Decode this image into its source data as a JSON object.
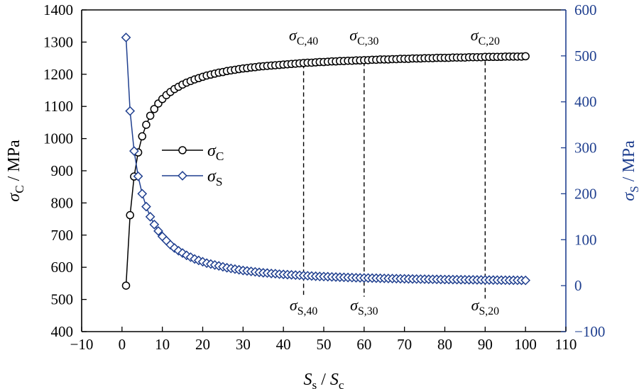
{
  "chart_data": {
    "type": "line",
    "xlabel": "S",
    "xlabel_sub": "s",
    "xlabel_sep": " / ",
    "xlabel_2": "S",
    "xlabel_2_sub": "c",
    "ylabel_left": "σ",
    "ylabel_left_sub": "C",
    "ylabel_left_unit": " / MPa",
    "ylabel_right": "σ",
    "ylabel_right_sub": "S",
    "ylabel_right_unit": " / MPa",
    "xlim": [
      -10,
      110
    ],
    "ylim_left": [
      400,
      1400
    ],
    "ylim_right": [
      -100,
      600
    ],
    "x_ticks": [
      -10,
      0,
      10,
      20,
      30,
      40,
      50,
      60,
      70,
      80,
      90,
      100,
      110
    ],
    "x_tick_labels": [
      "−10",
      "0",
      "10",
      "20",
      "30",
      "40",
      "50",
      "60",
      "70",
      "80",
      "90",
      "100",
      "110"
    ],
    "y_left_ticks": [
      400,
      500,
      600,
      700,
      800,
      900,
      1000,
      1100,
      1200,
      1300,
      1400
    ],
    "y_left_tick_labels": [
      "400",
      "500",
      "600",
      "700",
      "800",
      "900",
      "1000",
      "1100",
      "1200",
      "1300",
      "1400"
    ],
    "y_right_ticks": [
      -100,
      0,
      100,
      200,
      300,
      400,
      500,
      600
    ],
    "y_right_tick_labels": [
      "−100",
      "0",
      "100",
      "200",
      "300",
      "400",
      "500",
      "600"
    ],
    "grid": false,
    "legend_position": "center-left",
    "colors": {
      "sigma_c": "#000000",
      "sigma_s": "#1f3f8f",
      "axes": "#000000",
      "right_axis": "#1f3f8f"
    },
    "series": [
      {
        "name": "σ",
        "name_sub": "C",
        "axis": "left",
        "marker": "circle",
        "x": [
          1,
          2,
          3,
          4,
          5,
          6,
          7,
          8,
          9,
          10,
          11,
          12,
          13,
          14,
          15,
          16,
          17,
          18,
          19,
          20,
          21,
          22,
          23,
          24,
          25,
          26,
          27,
          28,
          29,
          30,
          31,
          32,
          33,
          34,
          35,
          36,
          37,
          38,
          39,
          40,
          41,
          42,
          43,
          44,
          45,
          46,
          47,
          48,
          49,
          50,
          51,
          52,
          53,
          54,
          55,
          56,
          57,
          58,
          59,
          60,
          61,
          62,
          63,
          64,
          65,
          66,
          67,
          68,
          69,
          70,
          71,
          72,
          73,
          74,
          75,
          76,
          77,
          78,
          79,
          80,
          81,
          82,
          83,
          84,
          85,
          86,
          87,
          88,
          89,
          90,
          91,
          92,
          93,
          94,
          95,
          96,
          97,
          98,
          99,
          100
        ],
        "y": [
          543,
          762,
          882,
          957,
          1007,
          1043,
          1071,
          1092,
          1109,
          1123,
          1135,
          1145,
          1154,
          1161,
          1168,
          1174,
          1179,
          1184,
          1188,
          1192,
          1196,
          1199,
          1202,
          1205,
          1207,
          1210,
          1212,
          1214,
          1216,
          1218,
          1219,
          1221,
          1222,
          1224,
          1225,
          1226,
          1227,
          1228,
          1229,
          1230,
          1231,
          1232,
          1233,
          1234,
          1235,
          1236,
          1236,
          1237,
          1238,
          1238,
          1239,
          1240,
          1240,
          1241,
          1241,
          1242,
          1242,
          1243,
          1243,
          1244,
          1244,
          1245,
          1245,
          1246,
          1246,
          1246,
          1247,
          1247,
          1248,
          1248,
          1248,
          1249,
          1249,
          1249,
          1250,
          1250,
          1250,
          1251,
          1251,
          1251,
          1251,
          1252,
          1252,
          1252,
          1252,
          1253,
          1253,
          1253,
          1253,
          1254,
          1254,
          1254,
          1254,
          1254,
          1255,
          1255,
          1255,
          1255,
          1255,
          1256
        ]
      },
      {
        "name": "σ",
        "name_sub": "S",
        "axis": "right",
        "marker": "diamond",
        "x": [
          1,
          2,
          3,
          4,
          5,
          6,
          7,
          8,
          9,
          10,
          11,
          12,
          13,
          14,
          15,
          16,
          17,
          18,
          19,
          20,
          21,
          22,
          23,
          24,
          25,
          26,
          27,
          28,
          29,
          30,
          31,
          32,
          33,
          34,
          35,
          36,
          37,
          38,
          39,
          40,
          41,
          42,
          43,
          44,
          45,
          46,
          47,
          48,
          49,
          50,
          51,
          52,
          53,
          54,
          55,
          56,
          57,
          58,
          59,
          60,
          61,
          62,
          63,
          64,
          65,
          66,
          67,
          68,
          69,
          70,
          71,
          72,
          73,
          74,
          75,
          76,
          77,
          78,
          79,
          80,
          81,
          82,
          83,
          84,
          85,
          86,
          87,
          88,
          89,
          90,
          91,
          92,
          93,
          94,
          95,
          96,
          97,
          98,
          99,
          100
        ],
        "y": [
          540,
          380,
          293,
          238,
          200,
          172,
          150,
          133,
          119,
          107,
          98,
          89,
          82,
          76,
          71,
          66,
          62,
          58,
          55,
          52,
          49,
          47,
          45,
          43,
          41,
          39,
          37.5,
          36,
          34.5,
          33,
          32,
          31,
          30,
          29,
          28,
          27.5,
          26.5,
          26,
          25,
          24.5,
          24,
          23.5,
          23,
          22.5,
          22,
          21.5,
          21,
          20.5,
          20,
          19.8,
          19.5,
          19,
          18.7,
          18.4,
          18.1,
          17.8,
          17.5,
          17.2,
          17,
          16.8,
          16.6,
          16.4,
          16.2,
          16,
          15.8,
          15.6,
          15.4,
          15.2,
          15,
          14.9,
          14.7,
          14.5,
          14.4,
          14.2,
          14.1,
          13.9,
          13.8,
          13.7,
          13.5,
          13.4,
          13.3,
          13.2,
          13.1,
          13,
          12.9,
          12.8,
          12.7,
          12.6,
          12.5,
          12.4,
          12.3,
          12.2,
          12.1,
          12,
          11.9,
          11.8,
          11.8,
          11.7,
          11.6,
          11.5
        ]
      }
    ],
    "annotations": [
      {
        "symbol": "σ",
        "sub": "C,40",
        "x": 45,
        "position": "top"
      },
      {
        "symbol": "σ",
        "sub": "C,30",
        "x": 60,
        "position": "top"
      },
      {
        "symbol": "σ",
        "sub": "C,20",
        "x": 90,
        "position": "top"
      },
      {
        "symbol": "σ",
        "sub": "S,40",
        "x": 45,
        "position": "bottom"
      },
      {
        "symbol": "σ",
        "sub": "S,30",
        "x": 60,
        "position": "bottom"
      },
      {
        "symbol": "σ",
        "sub": "S,20",
        "x": 90,
        "position": "bottom"
      }
    ],
    "reference_lines": [
      {
        "x": 45,
        "y_top_left": 1245,
        "y_bottom_right": 20
      },
      {
        "x": 60,
        "y_top_left": 1252,
        "y_bottom_right": 16
      },
      {
        "x": 90,
        "y_top_left": 1254,
        "y_bottom_right": 12
      }
    ]
  }
}
